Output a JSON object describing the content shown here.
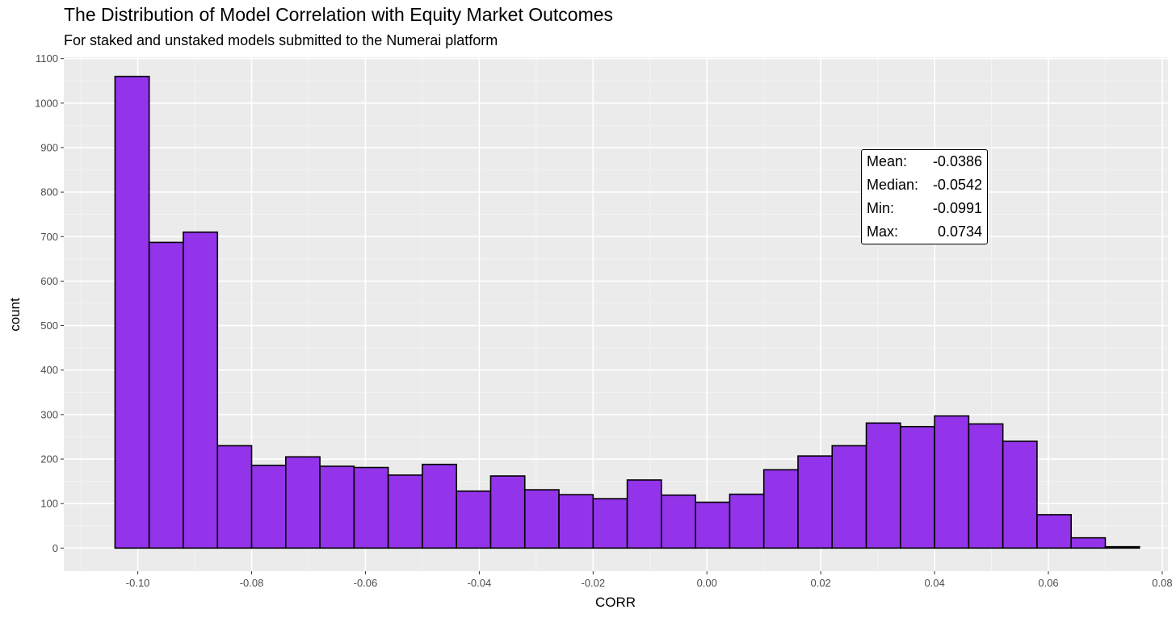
{
  "chart_data": {
    "type": "bar",
    "title": "The Distribution of Model Correlation with Equity Market Outcomes",
    "subtitle": "For staked and unstaked models submitted to the Numerai platform",
    "xlabel": "CORR",
    "ylabel": "count",
    "xlim": [
      -0.113,
      0.081
    ],
    "ylim": [
      -52,
      1103
    ],
    "grid": true,
    "bin_width": 0.006,
    "first_bin_left": -0.104,
    "counts": [
      1060,
      687,
      710,
      230,
      186,
      205,
      184,
      181,
      164,
      188,
      128,
      162,
      131,
      120,
      111,
      153,
      119,
      103,
      121,
      176,
      207,
      230,
      281,
      273,
      297,
      279,
      240,
      75,
      23,
      3
    ],
    "x_ticks": [
      -0.1,
      -0.08,
      -0.06,
      -0.04,
      -0.02,
      0.0,
      0.02,
      0.04,
      0.06,
      0.08
    ],
    "x_tick_labels": [
      "-0.10",
      "-0.08",
      "-0.06",
      "-0.04",
      "-0.02",
      "0.00",
      "0.02",
      "0.04",
      "0.06",
      "0.08"
    ],
    "y_ticks": [
      0,
      100,
      200,
      300,
      400,
      500,
      600,
      700,
      800,
      900,
      1000,
      1100
    ],
    "y_tick_labels": [
      "0",
      "100",
      "200",
      "300",
      "400",
      "500",
      "600",
      "700",
      "800",
      "900",
      "1000",
      "1100"
    ],
    "bar_fill": "#9333ea",
    "bar_outline": "#000000",
    "panel_background": "#ebebeb",
    "annotation": {
      "rows": [
        {
          "label": "Mean:",
          "value": "-0.0386"
        },
        {
          "label": "Median:",
          "value": "-0.0542"
        },
        {
          "label": "Min:",
          "value": "-0.0991"
        },
        {
          "label": "Max:",
          "value": "0.0734"
        }
      ]
    }
  }
}
